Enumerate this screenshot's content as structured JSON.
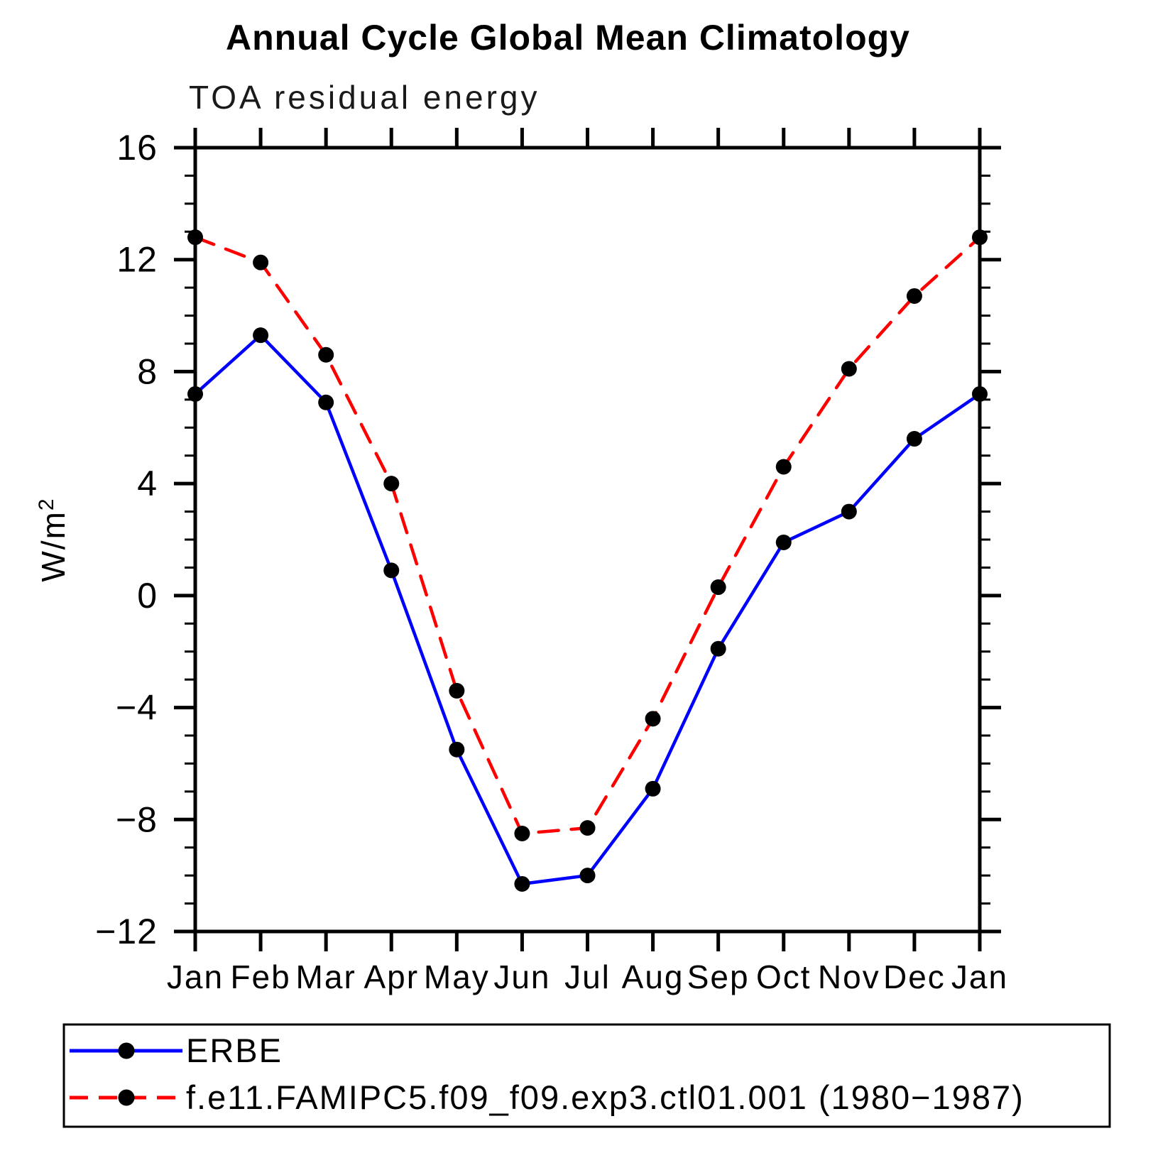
{
  "title": "Annual Cycle Global Mean Climatology",
  "subtitle": "TOA residual energy",
  "chart_data": {
    "type": "line",
    "x_categories": [
      "Jan",
      "Feb",
      "Mar",
      "Apr",
      "May",
      "Jun",
      "Jul",
      "Aug",
      "Sep",
      "Oct",
      "Nov",
      "Dec",
      "Jan"
    ],
    "ylabel": "W/m",
    "ylabel_sup": "2",
    "ylim": [
      -12,
      16
    ],
    "ytick_major_step": 4,
    "ytick_minor_step": 1,
    "ytick_values": [
      16,
      12,
      8,
      4,
      0,
      -4,
      -8,
      -12
    ],
    "ytick_labels": [
      "16",
      "12",
      "8",
      "4",
      "0",
      "−4",
      "−8",
      "−12"
    ],
    "grid": false,
    "legend_position": "bottom",
    "axis_color": "#000000",
    "marker_color": "#000000",
    "series": [
      {
        "name": "ERBE",
        "color": "#0000ff",
        "line_style": "solid",
        "values": [
          7.2,
          9.3,
          6.9,
          0.9,
          -5.5,
          -10.3,
          -10.0,
          -6.9,
          -1.9,
          1.9,
          3.0,
          5.6,
          7.2
        ]
      },
      {
        "name": "f.e11.FAMIPC5.f09_f09.exp3.ctl01.001 (1980−1987)",
        "color": "#ff0000",
        "line_style": "dashed",
        "values": [
          12.8,
          11.9,
          8.6,
          4.0,
          -3.4,
          -8.5,
          -8.3,
          -4.4,
          0.3,
          4.6,
          8.1,
          10.7,
          12.8
        ]
      }
    ]
  }
}
